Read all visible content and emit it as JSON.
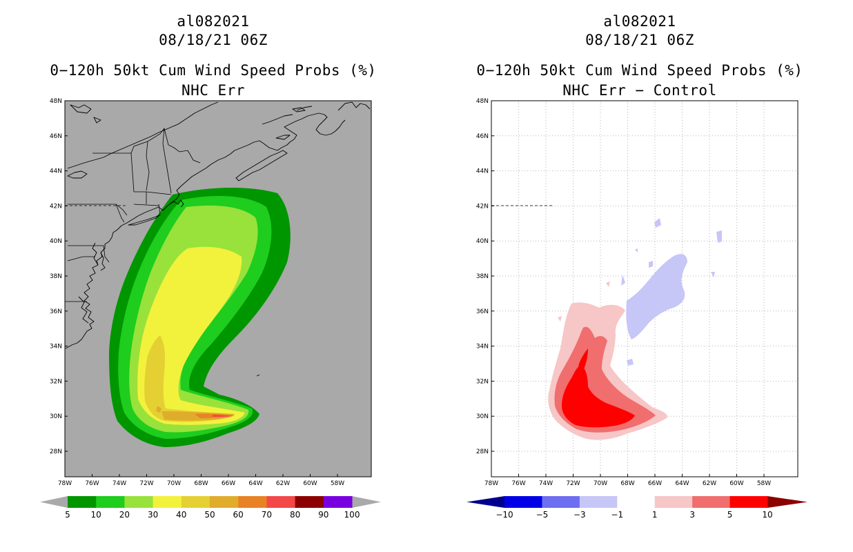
{
  "left_panel": {
    "storm_id": "al082021",
    "datetime": "08/18/21 06Z",
    "product": "0−120h 50kt Cum Wind Speed Probs (%)",
    "subtitle": "NHC Err",
    "background_color": "#a9a9a9",
    "legend": {
      "colors": [
        "#009600",
        "#1ecd1e",
        "#98e23b",
        "#f2f23c",
        "#e4d032",
        "#e0ac2c",
        "#e88225",
        "#f24848",
        "#8c0000",
        "#7800e0"
      ],
      "labels": [
        "5",
        "10",
        "20",
        "30",
        "40",
        "50",
        "60",
        "70",
        "80",
        "90",
        "100"
      ],
      "end_arrow_color": "#a9a9a9"
    }
  },
  "right_panel": {
    "storm_id": "al082021",
    "datetime": "08/18/21 06Z",
    "product": "0−120h 50kt Cum Wind Speed Probs (%)",
    "subtitle": "NHC Err − Control",
    "background_color": "#ffffff",
    "legend": {
      "colors": [
        "#0000e6",
        "#6e6ef0",
        "#c6c6f7",
        "#ffffff",
        "#f7c6c6",
        "#f06e6e",
        "#ff0000"
      ],
      "labels": [
        "−10",
        "−5",
        "−3",
        "−1",
        "1",
        "3",
        "5",
        "10"
      ],
      "left_arrow_color": "#00008c",
      "right_arrow_color": "#8c0000"
    }
  },
  "map": {
    "lat_labels": [
      "48N",
      "46N",
      "44N",
      "42N",
      "40N",
      "38N",
      "36N",
      "34N",
      "32N",
      "30N",
      "28N"
    ],
    "lon_labels": [
      "78W",
      "76W",
      "74W",
      "72W",
      "70W",
      "68W",
      "66W",
      "64W",
      "62W",
      "60W",
      "58W"
    ],
    "grid_color": "#b4b4b4",
    "coast_color": "#000000"
  }
}
